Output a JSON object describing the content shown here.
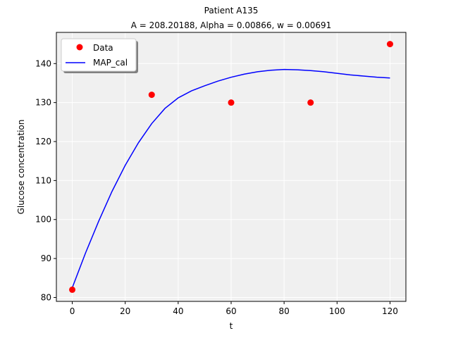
{
  "chart_data": {
    "type": "line",
    "title": "Patient A135",
    "subtitle": "A = 208.20188, Alpha = 0.00866, w = 0.00691",
    "xlabel": "t",
    "ylabel": "Glucose concentration",
    "xlim": [
      -6,
      126
    ],
    "ylim": [
      79,
      148
    ],
    "xticks": [
      0,
      20,
      40,
      60,
      80,
      100,
      120
    ],
    "yticks": [
      80,
      90,
      100,
      110,
      120,
      130,
      140
    ],
    "grid": true,
    "legend_position": "top-left",
    "series": [
      {
        "name": "Data",
        "kind": "scatter",
        "color": "#ff0000",
        "x": [
          0,
          30,
          60,
          90,
          120
        ],
        "y": [
          82,
          132,
          130,
          130,
          145
        ]
      },
      {
        "name": "MAP_cal",
        "kind": "line",
        "color": "#0000ff",
        "x": [
          0,
          5,
          10,
          15,
          20,
          25,
          30,
          35,
          40,
          45,
          50,
          55,
          60,
          65,
          70,
          75,
          80,
          85,
          90,
          95,
          100,
          105,
          110,
          115,
          120
        ],
        "y": [
          82.5,
          91.4,
          99.6,
          107.2,
          113.9,
          119.7,
          124.6,
          128.5,
          131.2,
          133.0,
          134.3,
          135.5,
          136.5,
          137.3,
          137.9,
          138.3,
          138.5,
          138.4,
          138.2,
          137.9,
          137.5,
          137.1,
          136.8,
          136.5,
          136.3
        ]
      }
    ]
  },
  "colors": {
    "plot_background": "#f0f0f0",
    "grid": "#ffffff"
  }
}
